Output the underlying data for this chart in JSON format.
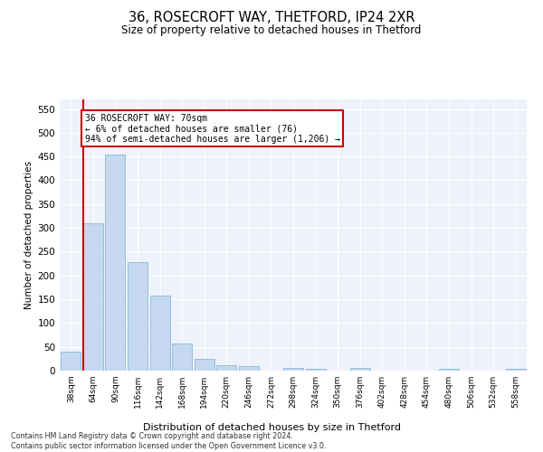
{
  "title": "36, ROSECROFT WAY, THETFORD, IP24 2XR",
  "subtitle": "Size of property relative to detached houses in Thetford",
  "xlabel": "Distribution of detached houses by size in Thetford",
  "ylabel": "Number of detached properties",
  "bar_color": "#c5d8ef",
  "bar_edge_color": "#7aafd4",
  "highlight_color": "#cc0000",
  "background_color": "#eef2fa",
  "grid_color": "#ffffff",
  "bin_labels": [
    "38sqm",
    "64sqm",
    "90sqm",
    "116sqm",
    "142sqm",
    "168sqm",
    "194sqm",
    "220sqm",
    "246sqm",
    "272sqm",
    "298sqm",
    "324sqm",
    "350sqm",
    "376sqm",
    "402sqm",
    "428sqm",
    "454sqm",
    "480sqm",
    "506sqm",
    "532sqm",
    "558sqm"
  ],
  "bar_values": [
    40,
    310,
    455,
    228,
    158,
    57,
    25,
    12,
    9,
    0,
    5,
    4,
    0,
    5,
    0,
    0,
    0,
    4,
    0,
    0,
    4
  ],
  "ylim": [
    0,
    570
  ],
  "yticks": [
    0,
    50,
    100,
    150,
    200,
    250,
    300,
    350,
    400,
    450,
    500,
    550
  ],
  "property_label": "36 ROSECROFT WAY: 70sqm",
  "annotation_line1": "← 6% of detached houses are smaller (76)",
  "annotation_line2": "94% of semi-detached houses are larger (1,206) →",
  "vline_x": 1,
  "footer_line1": "Contains HM Land Registry data © Crown copyright and database right 2024.",
  "footer_line2": "Contains public sector information licensed under the Open Government Licence v3.0.",
  "figsize": [
    6.0,
    5.0
  ],
  "dpi": 100
}
